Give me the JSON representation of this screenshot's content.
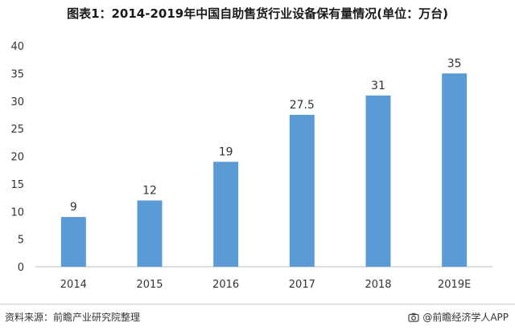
{
  "title": "图表1：2014-2019年中国自助售货行业设备保有量情况(单位：万台)",
  "chart_data": {
    "type": "bar",
    "categories": [
      "2014",
      "2015",
      "2016",
      "2017",
      "2018",
      "2019E"
    ],
    "values": [
      9,
      12,
      19,
      27.5,
      31,
      35
    ],
    "value_labels": [
      "9",
      "12",
      "19",
      "27.5",
      "31",
      "35"
    ],
    "yticks": [
      0,
      5,
      10,
      15,
      20,
      25,
      30,
      35,
      40
    ],
    "ylim": [
      0,
      40
    ],
    "grid": false,
    "bar_color": "#5b9bd5"
  },
  "footer": {
    "source": "资料来源：前瞻产业研究院整理",
    "credit": "@前瞻经济学人APP",
    "credit_icon": "camera-icon"
  }
}
